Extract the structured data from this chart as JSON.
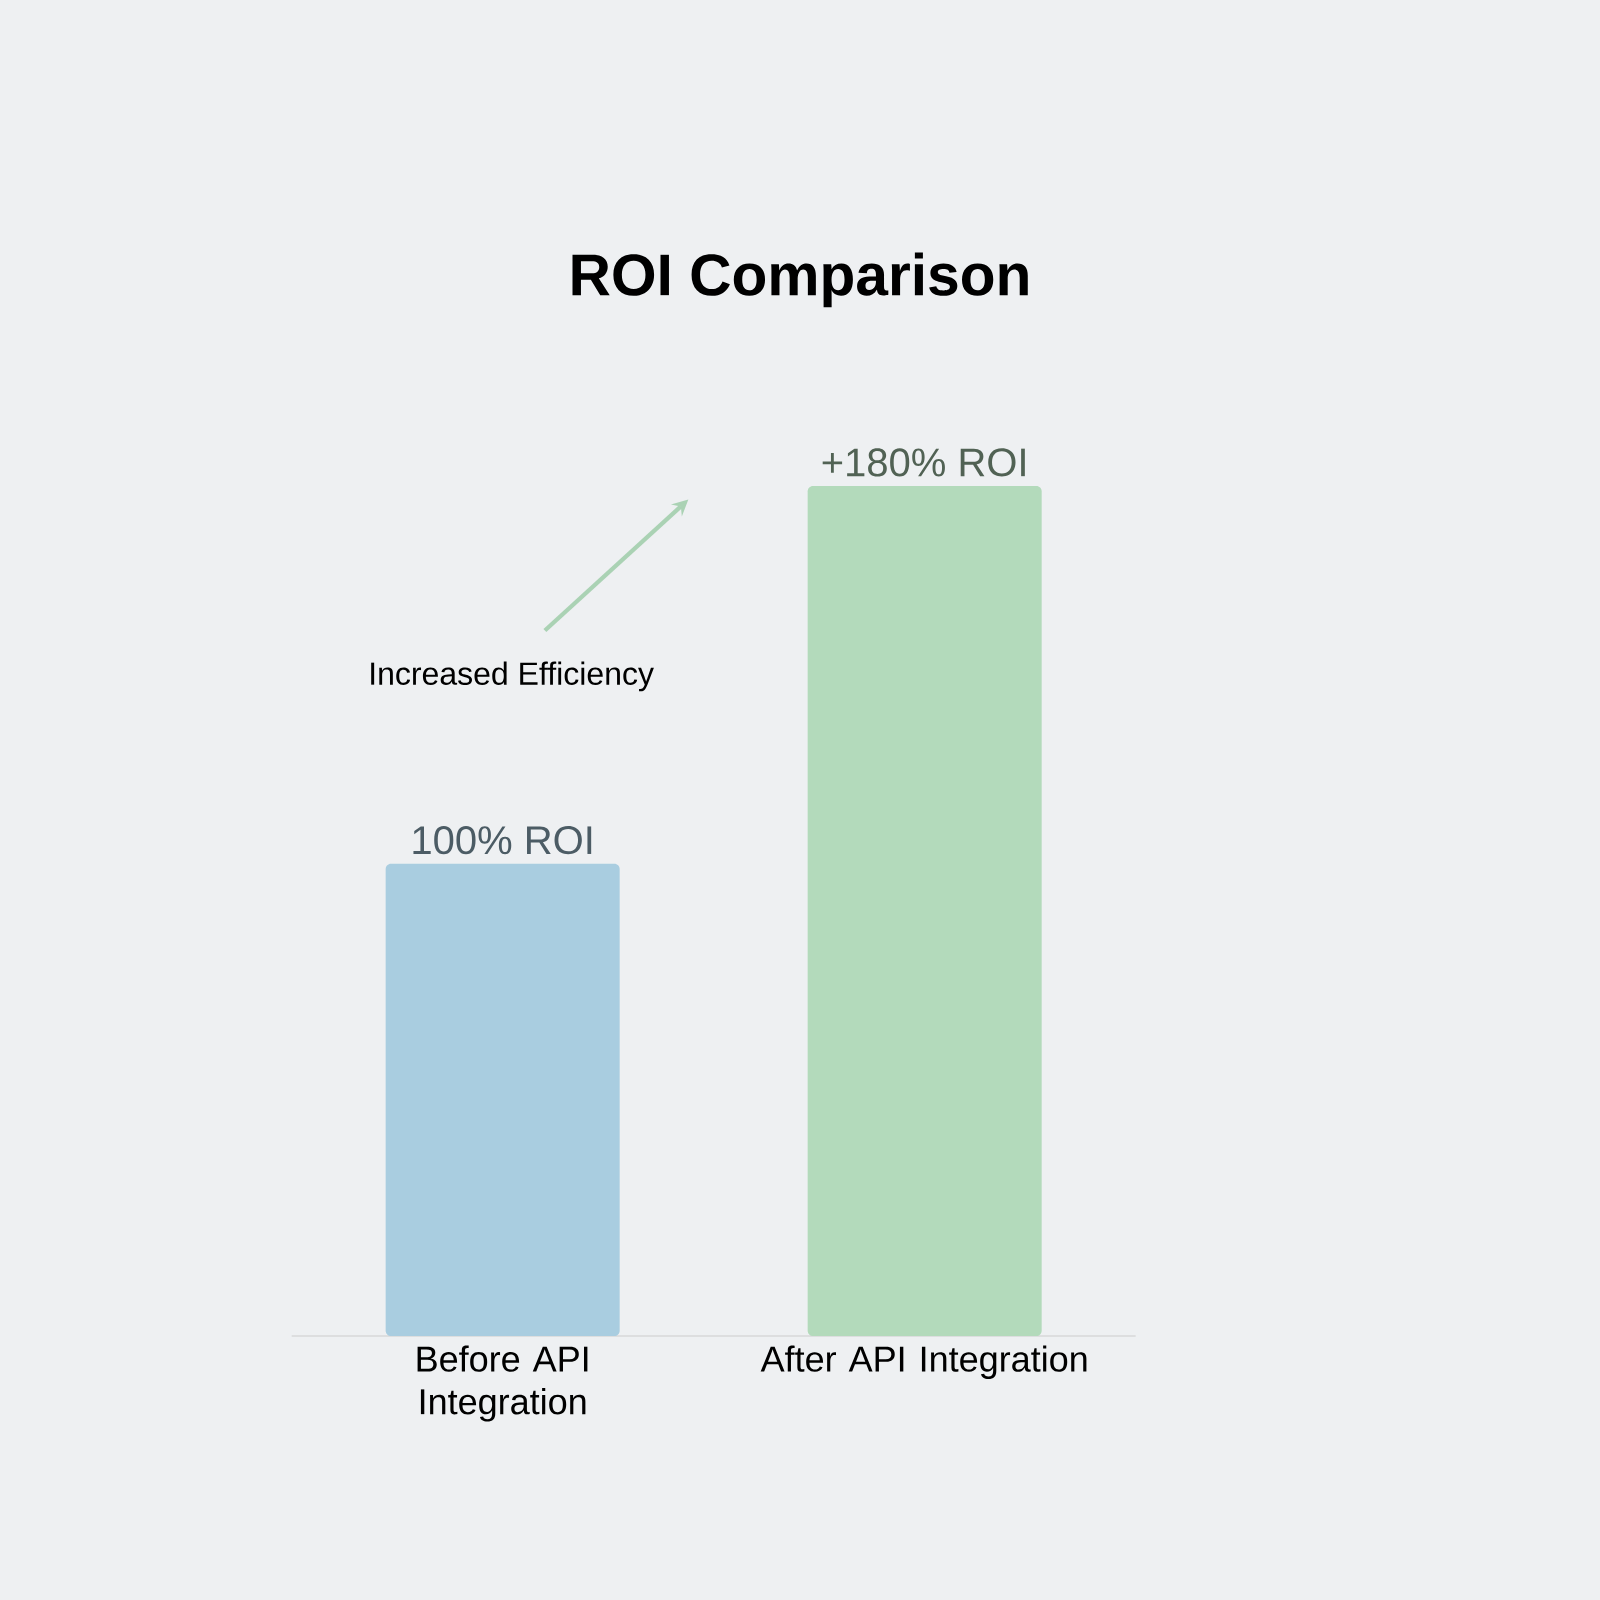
{
  "chart_data": {
    "type": "bar",
    "title": "ROI Comparison",
    "categories": [
      "Before API Integration",
      "After API Integration"
    ],
    "values": [
      100,
      180
    ],
    "colors": [
      "#a9cde0",
      "#b3dabb"
    ],
    "value_labels": [
      "100% ROI",
      "+180% ROI"
    ],
    "annotations": [
      "Increased Efficiency"
    ]
  }
}
